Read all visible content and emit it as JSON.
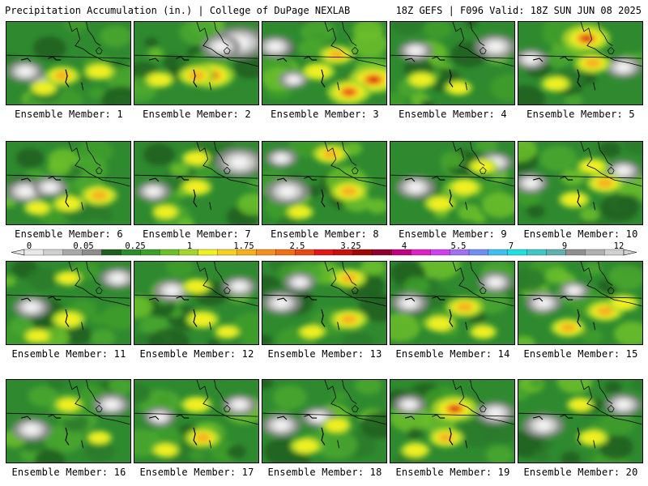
{
  "header": {
    "left": "Precipitation Accumulation (in.) | College of DuPage NEXLAB",
    "right": "18Z GEFS | F096 Valid: 18Z SUN JUN 08 2025"
  },
  "members": [
    {
      "label": "Ensemble Member: 1",
      "hot": [
        [
          0.45,
          0.65,
          0.55
        ],
        [
          0.75,
          0.6,
          0.45
        ],
        [
          0.3,
          0.8,
          0.35
        ]
      ],
      "white": [
        [
          0.15,
          0.6,
          0.45
        ],
        [
          0.3,
          0.75,
          0.3
        ]
      ]
    },
    {
      "label": "Ensemble Member: 2",
      "hot": [
        [
          0.62,
          0.65,
          0.85
        ],
        [
          0.5,
          0.65,
          0.6
        ],
        [
          0.2,
          0.7,
          0.4
        ]
      ],
      "white": [
        [
          0.85,
          0.25,
          0.8
        ],
        [
          0.7,
          0.3,
          0.5
        ]
      ]
    },
    {
      "label": "Ensemble Member: 3",
      "hot": [
        [
          0.9,
          0.7,
          0.95
        ],
        [
          0.7,
          0.85,
          0.8
        ],
        [
          0.6,
          0.4,
          0.55
        ],
        [
          0.45,
          0.6,
          0.5
        ]
      ],
      "white": [
        [
          0.1,
          0.3,
          0.45
        ],
        [
          0.25,
          0.7,
          0.3
        ]
      ]
    },
    {
      "label": "Ensemble Member: 4",
      "hot": [
        [
          0.25,
          0.7,
          0.4
        ],
        [
          0.55,
          0.8,
          0.35
        ]
      ],
      "white": [
        [
          0.85,
          0.3,
          0.55
        ],
        [
          0.2,
          0.35,
          0.4
        ]
      ]
    },
    {
      "label": "Ensemble Member: 5",
      "hot": [
        [
          0.55,
          0.2,
          0.9
        ],
        [
          0.6,
          0.5,
          0.6
        ],
        [
          0.3,
          0.75,
          0.4
        ]
      ],
      "white": [
        [
          0.85,
          0.55,
          0.45
        ],
        [
          0.1,
          0.45,
          0.4
        ]
      ]
    },
    {
      "label": "Ensemble Member: 6",
      "hot": [
        [
          0.75,
          0.65,
          0.6
        ],
        [
          0.5,
          0.75,
          0.45
        ],
        [
          0.25,
          0.8,
          0.35
        ]
      ],
      "white": [
        [
          0.15,
          0.6,
          0.5
        ],
        [
          0.35,
          0.55,
          0.4
        ]
      ]
    },
    {
      "label": "Ensemble Member: 7",
      "hot": [
        [
          0.5,
          0.55,
          0.45
        ],
        [
          0.25,
          0.85,
          0.35
        ],
        [
          0.5,
          0.2,
          0.4
        ]
      ],
      "white": [
        [
          0.85,
          0.25,
          0.7
        ],
        [
          0.15,
          0.6,
          0.4
        ]
      ]
    },
    {
      "label": "Ensemble Member: 8",
      "hot": [
        [
          0.7,
          0.6,
          0.6
        ],
        [
          0.55,
          0.15,
          0.55
        ],
        [
          0.3,
          0.85,
          0.35
        ]
      ],
      "white": [
        [
          0.2,
          0.6,
          0.6
        ],
        [
          0.15,
          0.2,
          0.35
        ]
      ]
    },
    {
      "label": "Ensemble Member: 9",
      "hot": [
        [
          0.6,
          0.55,
          0.5
        ],
        [
          0.4,
          0.75,
          0.45
        ],
        [
          0.75,
          0.3,
          0.4
        ]
      ],
      "white": [
        [
          0.2,
          0.55,
          0.5
        ],
        [
          0.85,
          0.25,
          0.4
        ]
      ]
    },
    {
      "label": "Ensemble Member: 10",
      "hot": [
        [
          0.7,
          0.5,
          0.6
        ],
        [
          0.45,
          0.7,
          0.45
        ],
        [
          0.6,
          0.3,
          0.45
        ]
      ],
      "white": [
        [
          0.1,
          0.5,
          0.4
        ],
        [
          0.85,
          0.35,
          0.4
        ]
      ]
    },
    {
      "label": "Ensemble Member: 11",
      "hot": [
        [
          0.5,
          0.7,
          0.5
        ],
        [
          0.25,
          0.9,
          0.35
        ],
        [
          0.5,
          0.2,
          0.35
        ]
      ],
      "white": [
        [
          0.2,
          0.55,
          0.45
        ],
        [
          0.9,
          0.2,
          0.45
        ]
      ]
    },
    {
      "label": "Ensemble Member: 12",
      "hot": [
        [
          0.55,
          0.7,
          0.5
        ],
        [
          0.5,
          0.3,
          0.4
        ],
        [
          0.75,
          0.85,
          0.3
        ]
      ],
      "white": [
        [
          0.3,
          0.35,
          0.45
        ],
        [
          0.85,
          0.3,
          0.4
        ]
      ]
    },
    {
      "label": "Ensemble Member: 13",
      "hot": [
        [
          0.7,
          0.7,
          0.6
        ],
        [
          0.7,
          0.2,
          0.55
        ],
        [
          0.4,
          0.85,
          0.35
        ]
      ],
      "white": [
        [
          0.15,
          0.5,
          0.5
        ],
        [
          0.3,
          0.25,
          0.35
        ]
      ]
    },
    {
      "label": "Ensemble Member: 14",
      "hot": [
        [
          0.6,
          0.55,
          0.6
        ],
        [
          0.4,
          0.75,
          0.45
        ],
        [
          0.75,
          0.85,
          0.35
        ]
      ],
      "white": [
        [
          0.15,
          0.5,
          0.45
        ],
        [
          0.85,
          0.25,
          0.4
        ]
      ]
    },
    {
      "label": "Ensemble Member: 15",
      "hot": [
        [
          0.4,
          0.8,
          0.55
        ],
        [
          0.7,
          0.6,
          0.6
        ],
        [
          0.85,
          0.5,
          0.45
        ]
      ],
      "white": [
        [
          0.2,
          0.5,
          0.45
        ],
        [
          0.45,
          0.35,
          0.3
        ]
      ]
    },
    {
      "label": "Ensemble Member: 16",
      "hot": [
        [
          0.5,
          0.3,
          0.35
        ],
        [
          0.75,
          0.7,
          0.3
        ]
      ],
      "white": [
        [
          0.2,
          0.6,
          0.5
        ],
        [
          0.85,
          0.3,
          0.45
        ]
      ]
    },
    {
      "label": "Ensemble Member: 17",
      "hot": [
        [
          0.55,
          0.7,
          0.55
        ],
        [
          0.5,
          0.3,
          0.45
        ],
        [
          0.25,
          0.85,
          0.35
        ]
      ],
      "white": [
        [
          0.85,
          0.3,
          0.4
        ],
        [
          0.2,
          0.45,
          0.35
        ]
      ]
    },
    {
      "label": "Ensemble Member: 18",
      "hot": [
        [
          0.35,
          0.8,
          0.45
        ],
        [
          0.6,
          0.55,
          0.4
        ]
      ],
      "white": [
        [
          0.15,
          0.55,
          0.5
        ],
        [
          0.45,
          0.45,
          0.4
        ]
      ]
    },
    {
      "label": "Ensemble Member: 19",
      "hot": [
        [
          0.52,
          0.35,
          0.85
        ],
        [
          0.45,
          0.7,
          0.55
        ],
        [
          0.2,
          0.85,
          0.4
        ]
      ],
      "white": [
        [
          0.85,
          0.4,
          0.5
        ],
        [
          0.15,
          0.3,
          0.35
        ]
      ]
    },
    {
      "label": "Ensemble Member: 20",
      "hot": [
        [
          0.6,
          0.7,
          0.45
        ],
        [
          0.5,
          0.3,
          0.35
        ]
      ],
      "white": [
        [
          0.2,
          0.55,
          0.55
        ],
        [
          0.85,
          0.3,
          0.45
        ]
      ]
    }
  ],
  "legend": {
    "tick_labels": [
      "0",
      "0.05",
      "0.25",
      "1",
      "1.75",
      "2.5",
      "3.25",
      "4",
      "5.5",
      "7",
      "9",
      "12"
    ],
    "colors": [
      "#e8e8e8",
      "#cfcfcf",
      "#a8a8a8",
      "#8c8c8c",
      "#1e5e1e",
      "#2f8a2f",
      "#3e9e2a",
      "#6cbf2a",
      "#a6d62a",
      "#f0f020",
      "#f5d020",
      "#f5b020",
      "#f59020",
      "#f07018",
      "#e84818",
      "#e01818",
      "#c81010",
      "#a00808",
      "#900030",
      "#c00080",
      "#e020c0",
      "#d040f0",
      "#a070f0",
      "#7090f0",
      "#40c0f0",
      "#20e0e0",
      "#40c8c8",
      "#60b0b0",
      "#909090",
      "#b0b0b0",
      "#d0d0d0"
    ]
  }
}
